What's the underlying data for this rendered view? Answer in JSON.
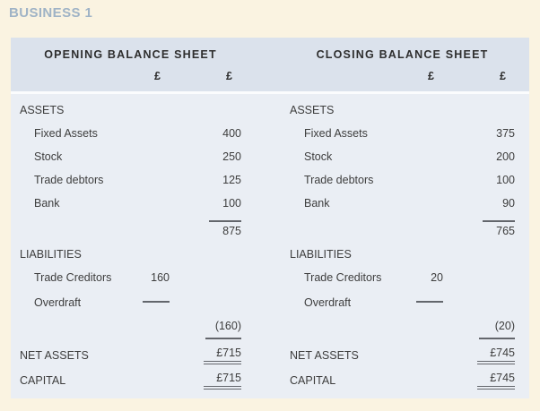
{
  "page_title": "BUSINESS 1",
  "colors": {
    "page_bg": "#faf3e1",
    "header_band_bg": "#dbe2ec",
    "body_band_bg": "#eaeef4",
    "separator": "#fbfcfd",
    "text": "#3d3d3d",
    "title_text": "#9fb3c6",
    "rule_lines": "#63666c"
  },
  "sheets": [
    {
      "title": "OPENING BALANCE SHEET",
      "col_headers": [
        "£",
        "£"
      ],
      "rows": [
        {
          "type": "section",
          "label": "ASSETS"
        },
        {
          "type": "item",
          "indent": true,
          "label": "Fixed Assets",
          "col2": "400"
        },
        {
          "type": "item",
          "indent": true,
          "label": "Stock",
          "col2": "250"
        },
        {
          "type": "item",
          "indent": true,
          "label": "Trade debtors",
          "col2": "125"
        },
        {
          "type": "item",
          "indent": true,
          "label": "Bank",
          "col2": "100"
        },
        {
          "type": "total",
          "col2": "875"
        },
        {
          "type": "section",
          "label": "LIABILITIES"
        },
        {
          "type": "item",
          "indent": true,
          "label": "Trade Creditors",
          "col1": "160"
        },
        {
          "type": "item",
          "indent": true,
          "label": "Overdraft",
          "col1_rule": true
        },
        {
          "type": "value",
          "col2": "(160)"
        },
        {
          "type": "result",
          "label": "NET ASSETS",
          "col2": "£715"
        },
        {
          "type": "result",
          "label": "CAPITAL",
          "col2": "£715"
        }
      ]
    },
    {
      "title": "CLOSING BALANCE SHEET",
      "col_headers": [
        "£",
        "£"
      ],
      "rows": [
        {
          "type": "section",
          "label": "ASSETS"
        },
        {
          "type": "item",
          "indent": true,
          "label": "Fixed Assets",
          "col2": "375"
        },
        {
          "type": "item",
          "indent": true,
          "label": "Stock",
          "col2": "200"
        },
        {
          "type": "item",
          "indent": true,
          "label": "Trade debtors",
          "col2": "100"
        },
        {
          "type": "item",
          "indent": true,
          "label": "Bank",
          "col2": "90"
        },
        {
          "type": "total",
          "col2": "765"
        },
        {
          "type": "section",
          "label": "LIABILITIES"
        },
        {
          "type": "item",
          "indent": true,
          "label": "Trade Creditors",
          "col1": "20"
        },
        {
          "type": "item",
          "indent": true,
          "label": "Overdraft",
          "col1_rule": true
        },
        {
          "type": "value",
          "col2": "(20)"
        },
        {
          "type": "result",
          "label": "NET ASSETS",
          "col2": "£745"
        },
        {
          "type": "result",
          "label": "CAPITAL",
          "col2": "£745"
        }
      ]
    }
  ]
}
